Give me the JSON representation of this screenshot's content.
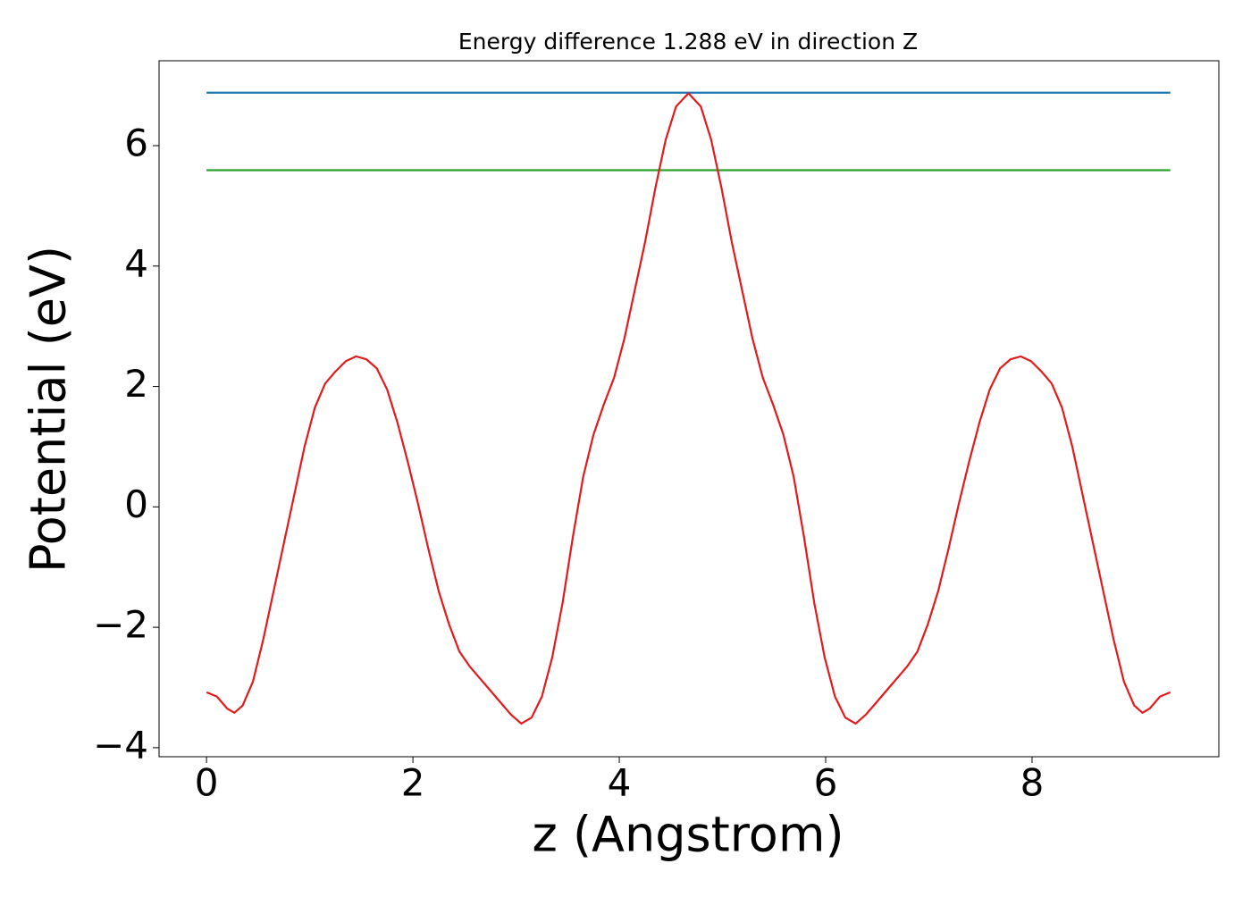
{
  "chart_data": {
    "type": "line",
    "title": "Energy difference 1.288 eV in direction Z",
    "xlabel": "z (Angstrom)",
    "ylabel": "Potential (eV)",
    "xlim": [
      -0.46,
      9.81
    ],
    "ylim": [
      -4.15,
      7.41
    ],
    "xticks": [
      0,
      2,
      4,
      6,
      8
    ],
    "yticks": [
      {
        "value": -4,
        "label": "−4"
      },
      {
        "value": -2,
        "label": "−2"
      },
      0,
      2,
      4,
      6
    ],
    "series": [
      {
        "color": "#1f77b4",
        "x": [
          0,
          9.34
        ],
        "values": [
          6.88,
          6.88
        ]
      },
      {
        "color": "#2ca02c",
        "x": [
          0,
          9.34
        ],
        "values": [
          5.592,
          5.592
        ]
      },
      {
        "color": "#e31a1c",
        "x": [
          0,
          0.1,
          0.2,
          0.27,
          0.35,
          0.45,
          0.55,
          0.65,
          0.75,
          0.85,
          0.95,
          1.05,
          1.15,
          1.25,
          1.35,
          1.45,
          1.55,
          1.65,
          1.75,
          1.85,
          1.95,
          2.05,
          2.15,
          2.25,
          2.35,
          2.45,
          2.55,
          2.7,
          2.85,
          2.95,
          3.05,
          3.15,
          3.25,
          3.35,
          3.45,
          3.55,
          3.65,
          3.75,
          3.85,
          3.95,
          4.05,
          4.15,
          4.25,
          4.35,
          4.45,
          4.55,
          4.67,
          4.79,
          4.89,
          4.99,
          5.09,
          5.19,
          5.29,
          5.39,
          5.49,
          5.59,
          5.69,
          5.79,
          5.89,
          5.99,
          6.09,
          6.19,
          6.29,
          6.39,
          6.49,
          6.64,
          6.79,
          6.89,
          6.99,
          7.09,
          7.19,
          7.29,
          7.39,
          7.49,
          7.59,
          7.69,
          7.79,
          7.89,
          7.99,
          8.09,
          8.19,
          8.29,
          8.39,
          8.49,
          8.59,
          8.69,
          8.79,
          8.89,
          8.99,
          9.07,
          9.14,
          9.24,
          9.34
        ],
        "values": [
          -3.08,
          -3.15,
          -3.35,
          -3.42,
          -3.3,
          -2.9,
          -2.2,
          -1.4,
          -0.6,
          0.2,
          1.0,
          1.65,
          2.05,
          2.25,
          2.42,
          2.5,
          2.45,
          2.3,
          1.95,
          1.4,
          0.75,
          0.05,
          -0.7,
          -1.4,
          -1.95,
          -2.4,
          -2.65,
          -2.95,
          -3.25,
          -3.45,
          -3.6,
          -3.5,
          -3.15,
          -2.5,
          -1.6,
          -0.5,
          0.5,
          1.2,
          1.7,
          2.15,
          2.8,
          3.6,
          4.4,
          5.3,
          6.1,
          6.65,
          6.87,
          6.65,
          6.1,
          5.3,
          4.4,
          3.6,
          2.8,
          2.15,
          1.7,
          1.2,
          0.5,
          -0.5,
          -1.6,
          -2.5,
          -3.15,
          -3.5,
          -3.6,
          -3.45,
          -3.25,
          -2.95,
          -2.65,
          -2.4,
          -1.95,
          -1.4,
          -0.7,
          0.05,
          0.75,
          1.4,
          1.95,
          2.3,
          2.45,
          2.5,
          2.42,
          2.25,
          2.05,
          1.65,
          1.0,
          0.2,
          -0.6,
          -1.4,
          -2.2,
          -2.9,
          -3.3,
          -3.42,
          -3.35,
          -3.15,
          -3.08
        ]
      }
    ]
  }
}
